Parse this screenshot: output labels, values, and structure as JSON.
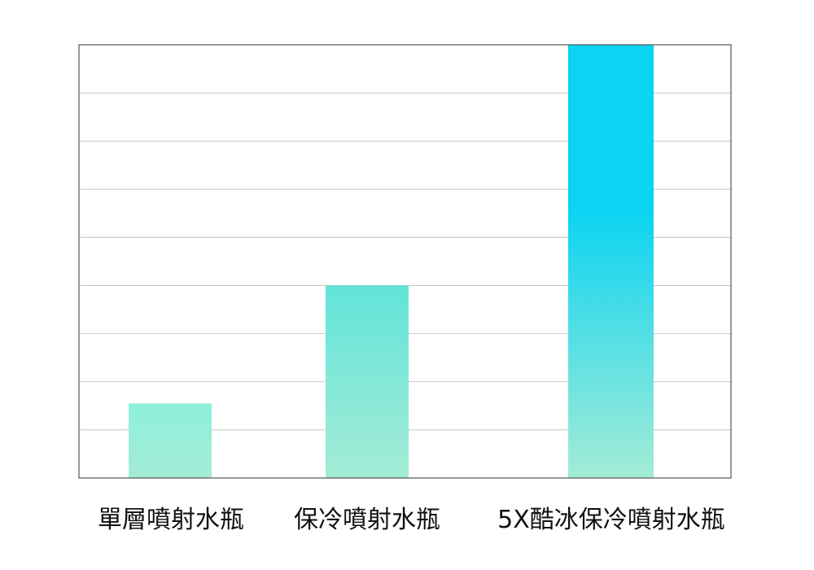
{
  "chart_data": {
    "type": "bar",
    "categories": [
      "單層噴射水瓶",
      "保冷噴射水瓶",
      "5X酷冰保冷噴射水瓶"
    ],
    "values": [
      1.55,
      4.0,
      9.0
    ],
    "ylim": [
      0,
      9
    ],
    "grid": true,
    "legend": "none",
    "colors": {
      "bar_low_top": "#8ef0dc",
      "bar_bottom": "#a4ecd6",
      "bar_mid_top": "#62e4d9",
      "bar_high_top": "#0bd3f2",
      "grid": "#c8c8c8",
      "axis": "#555555"
    }
  }
}
